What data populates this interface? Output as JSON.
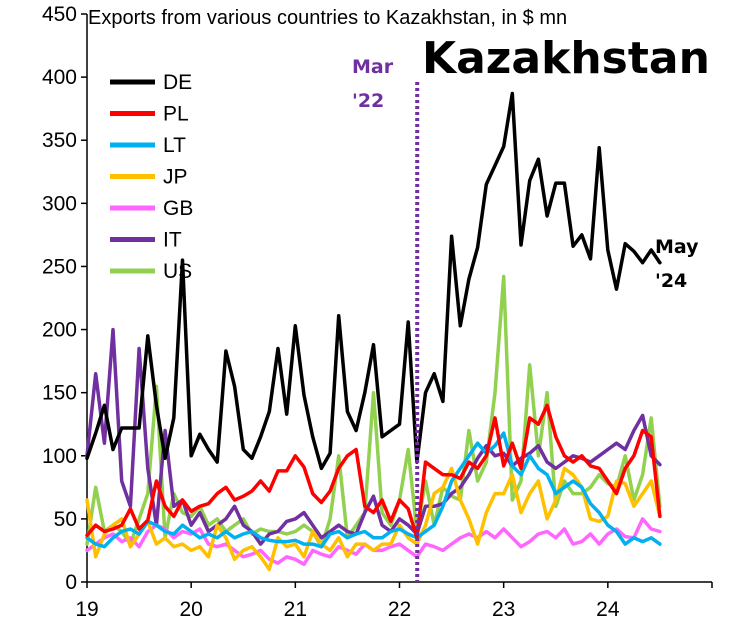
{
  "chart_data": {
    "type": "line",
    "title": "Kazakhstan",
    "subtitle": "Exports from various countries to Kazakhstan, in $ mn",
    "xlabel": "",
    "ylabel": "",
    "xlim": [
      2019.0,
      2025.0
    ],
    "ylim": [
      0,
      450
    ],
    "x_tick_labels": [
      "19",
      "20",
      "21",
      "22",
      "23",
      "24"
    ],
    "y_tick_labels": [
      "0",
      "50",
      "100",
      "150",
      "200",
      "250",
      "300",
      "350",
      "400",
      "450"
    ],
    "grid": false,
    "legend_position": "top-left",
    "annotations": {
      "mar22_line1": "Mar",
      "mar22_line2": "'22",
      "mar22_x": 2022.17,
      "may24_line1": "May",
      "may24_line2": "'24"
    },
    "series": [
      {
        "name": "DE",
        "color": "#000000",
        "start": 2019.0,
        "values": [
          98,
          118,
          140,
          105,
          122,
          122,
          122,
          195,
          140,
          98,
          130,
          255,
          100,
          117,
          105,
          95,
          183,
          155,
          105,
          98,
          115,
          135,
          185,
          133,
          203,
          148,
          115,
          90,
          102,
          211,
          135,
          120,
          150,
          188,
          115,
          120,
          125,
          206,
          95,
          150,
          165,
          143,
          274,
          203,
          240,
          265,
          315,
          330,
          345,
          387,
          267,
          318,
          335,
          290,
          316,
          316,
          266,
          275,
          256,
          344,
          263,
          232,
          268,
          262,
          253,
          263,
          253
        ]
      },
      {
        "name": "PL",
        "color": "#ff0000",
        "start": 2019.0,
        "values": [
          37,
          45,
          40,
          42,
          45,
          58,
          42,
          49,
          80,
          60,
          52,
          65,
          56,
          60,
          62,
          70,
          75,
          65,
          68,
          72,
          80,
          72,
          88,
          88,
          100,
          91,
          70,
          63,
          72,
          90,
          100,
          105,
          60,
          55,
          65,
          48,
          65,
          58,
          35,
          95,
          90,
          85,
          85,
          82,
          95,
          90,
          100,
          130,
          92,
          110,
          90,
          130,
          125,
          140,
          115,
          100,
          95,
          100,
          92,
          90,
          80,
          70,
          90,
          100,
          120,
          115,
          52
        ]
      },
      {
        "name": "LT",
        "color": "#00b0f0",
        "start": 2019.0,
        "values": [
          35,
          30,
          28,
          35,
          40,
          42,
          38,
          48,
          45,
          40,
          38,
          45,
          40,
          35,
          38,
          35,
          40,
          35,
          38,
          40,
          35,
          33,
          32,
          32,
          33,
          30,
          30,
          28,
          38,
          40,
          35,
          38,
          40,
          35,
          35,
          40,
          42,
          38,
          35,
          40,
          45,
          60,
          80,
          90,
          100,
          110,
          102,
          108,
          118,
          92,
          85,
          100,
          90,
          85,
          70,
          75,
          80,
          75,
          62,
          55,
          45,
          40,
          30,
          35,
          32,
          35,
          30
        ]
      },
      {
        "name": "JP",
        "color": "#ffc000",
        "start": 2019.0,
        "values": [
          65,
          20,
          38,
          45,
          50,
          28,
          38,
          48,
          30,
          35,
          28,
          30,
          25,
          28,
          20,
          45,
          35,
          18,
          25,
          28,
          20,
          10,
          35,
          28,
          30,
          20,
          40,
          30,
          25,
          35,
          20,
          30,
          30,
          25,
          30,
          30,
          45,
          35,
          30,
          45,
          70,
          75,
          90,
          65,
          50,
          30,
          55,
          70,
          70,
          85,
          55,
          70,
          80,
          50,
          65,
          90,
          85,
          75,
          50,
          48,
          52,
          80,
          78,
          60,
          70,
          80,
          52
        ]
      },
      {
        "name": "GB",
        "color": "#ff66ff",
        "start": 2019.0,
        "values": [
          25,
          30,
          35,
          38,
          32,
          35,
          28,
          40,
          45,
          42,
          35,
          40,
          38,
          42,
          30,
          28,
          30,
          25,
          20,
          22,
          25,
          18,
          15,
          20,
          18,
          14,
          25,
          22,
          20,
          28,
          25,
          22,
          30,
          25,
          25,
          28,
          30,
          25,
          20,
          30,
          28,
          25,
          30,
          35,
          38,
          35,
          40,
          35,
          42,
          35,
          28,
          32,
          38,
          40,
          35,
          42,
          30,
          32,
          38,
          30,
          38,
          42,
          36,
          35,
          50,
          42,
          40
        ]
      },
      {
        "name": "IT",
        "color": "#7030a0",
        "start": 2019.0,
        "values": [
          100,
          165,
          110,
          200,
          80,
          60,
          185,
          90,
          45,
          120,
          60,
          65,
          45,
          55,
          40,
          45,
          50,
          60,
          45,
          40,
          30,
          38,
          40,
          48,
          50,
          55,
          45,
          35,
          40,
          45,
          40,
          38,
          55,
          68,
          45,
          40,
          50,
          45,
          38,
          60,
          60,
          62,
          70,
          75,
          85,
          98,
          108,
          100,
          102,
          92,
          98,
          102,
          108,
          95,
          90,
          95,
          100,
          98,
          95,
          100,
          105,
          110,
          105,
          120,
          132,
          100,
          93
        ]
      },
      {
        "name": "US",
        "color": "#92d050",
        "start": 2019.0,
        "values": [
          30,
          75,
          40,
          45,
          40,
          30,
          50,
          70,
          155,
          35,
          70,
          55,
          52,
          60,
          45,
          50,
          40,
          45,
          50,
          38,
          42,
          40,
          40,
          38,
          40,
          45,
          40,
          28,
          50,
          100,
          35,
          45,
          55,
          150,
          55,
          45,
          65,
          105,
          40,
          80,
          45,
          75,
          68,
          65,
          120,
          80,
          95,
          150,
          242,
          65,
          80,
          172,
          100,
          150,
          60,
          80,
          70,
          70,
          75,
          85,
          78,
          75,
          100,
          65,
          85,
          130,
          60
        ]
      }
    ]
  }
}
